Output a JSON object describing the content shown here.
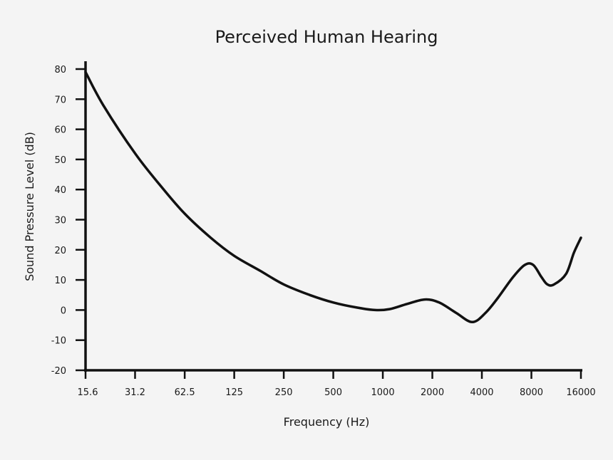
{
  "chart_data": {
    "type": "line",
    "title": "Perceived Human Hearing",
    "xlabel": "Frequency (Hz)",
    "ylabel": "Sound Pressure Level (dB)",
    "x_scale": "log2",
    "x_ticks": [
      15.6,
      31.2,
      62.5,
      125,
      250,
      500,
      1000,
      2000,
      4000,
      8000,
      16000
    ],
    "x_tick_labels": [
      "15.6",
      "31.2",
      "62.5",
      "125",
      "250",
      "500",
      "1000",
      "2000",
      "4000",
      "8000",
      "16000"
    ],
    "ylim": [
      -20,
      80
    ],
    "y_ticks": [
      80,
      70,
      60,
      50,
      40,
      30,
      20,
      10,
      0,
      -10,
      -20
    ],
    "y_tick_labels": [
      "80",
      "70",
      "60",
      "50",
      "40",
      "30",
      "20",
      "10",
      "0",
      "-10",
      "-20"
    ],
    "grid": false,
    "colors": {
      "line": "#111111",
      "axis": "#111111",
      "background": "#f4f4f4"
    },
    "series": [
      {
        "values": [
          {
            "x": 15.6,
            "y": 79
          },
          {
            "x": 20,
            "y": 68
          },
          {
            "x": 31.2,
            "y": 52
          },
          {
            "x": 45,
            "y": 41
          },
          {
            "x": 62.5,
            "y": 32
          },
          {
            "x": 90,
            "y": 24
          },
          {
            "x": 125,
            "y": 18
          },
          {
            "x": 180,
            "y": 13
          },
          {
            "x": 250,
            "y": 8.5
          },
          {
            "x": 360,
            "y": 5
          },
          {
            "x": 500,
            "y": 2.5
          },
          {
            "x": 700,
            "y": 0.8
          },
          {
            "x": 900,
            "y": 0
          },
          {
            "x": 1100,
            "y": 0.3
          },
          {
            "x": 1400,
            "y": 2
          },
          {
            "x": 1800,
            "y": 3.5
          },
          {
            "x": 2200,
            "y": 2.5
          },
          {
            "x": 2800,
            "y": -1
          },
          {
            "x": 3500,
            "y": -4
          },
          {
            "x": 4200,
            "y": -1
          },
          {
            "x": 5000,
            "y": 4
          },
          {
            "x": 6200,
            "y": 11
          },
          {
            "x": 7300,
            "y": 15
          },
          {
            "x": 8200,
            "y": 15
          },
          {
            "x": 9200,
            "y": 11
          },
          {
            "x": 10000,
            "y": 8.5
          },
          {
            "x": 11000,
            "y": 8.5
          },
          {
            "x": 13000,
            "y": 12
          },
          {
            "x": 14500,
            "y": 19
          },
          {
            "x": 16000,
            "y": 24
          }
        ]
      }
    ]
  }
}
